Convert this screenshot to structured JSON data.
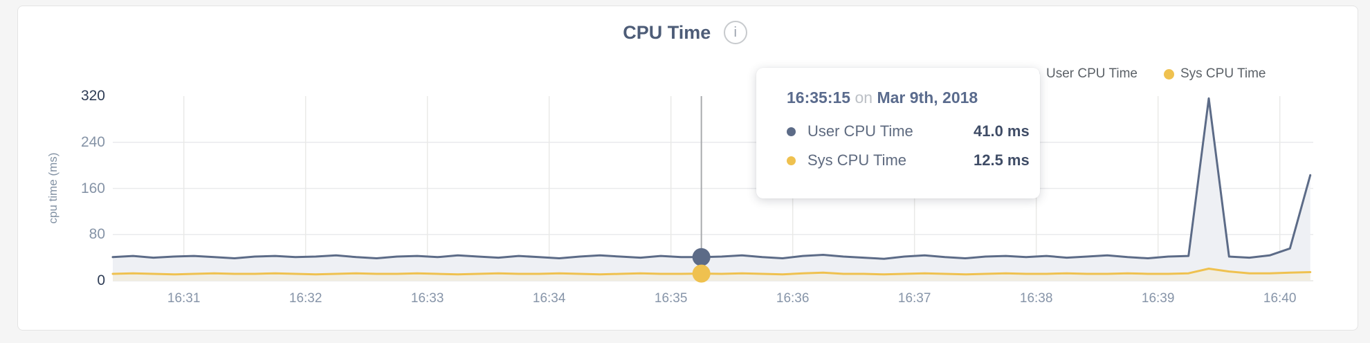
{
  "page": {
    "background": "#f5f5f5",
    "card_background": "#ffffff",
    "card_border": "#e4e4e4"
  },
  "header": {
    "title": "CPU Time",
    "info_icon_glyph": "i"
  },
  "legend": {
    "items": [
      {
        "label": "User CPU Time",
        "color": "#5c6b87"
      },
      {
        "label": "Sys CPU Time",
        "color": "#efc14f"
      }
    ]
  },
  "tooltip": {
    "time": "16:35:15",
    "preposition": "on",
    "date": "Mar 9th, 2018",
    "rows": [
      {
        "label": "User CPU Time",
        "value": "41.0 ms",
        "color": "#5c6b87"
      },
      {
        "label": "Sys CPU Time",
        "value": "12.5 ms",
        "color": "#efc14f"
      }
    ]
  },
  "chart_data": {
    "type": "area",
    "title": "CPU Time",
    "xlabel": "",
    "ylabel": "cpu time (ms)",
    "ylim": [
      0,
      320
    ],
    "y_ticks": [
      0,
      80,
      160,
      240,
      320
    ],
    "y_gridlines": [
      80,
      160,
      240
    ],
    "x_ticks": [
      "16:31",
      "16:32",
      "16:33",
      "16:34",
      "16:35",
      "16:36",
      "16:37",
      "16:38",
      "16:39",
      "16:40"
    ],
    "grid": true,
    "legend_position": "top-right",
    "x_times": [
      "16:30:25",
      "16:30:35",
      "16:30:45",
      "16:30:55",
      "16:31:05",
      "16:31:15",
      "16:31:25",
      "16:31:35",
      "16:31:45",
      "16:31:55",
      "16:32:05",
      "16:32:15",
      "16:32:25",
      "16:32:35",
      "16:32:45",
      "16:32:55",
      "16:33:05",
      "16:33:15",
      "16:33:25",
      "16:33:35",
      "16:33:45",
      "16:33:55",
      "16:34:05",
      "16:34:15",
      "16:34:25",
      "16:34:35",
      "16:34:45",
      "16:34:55",
      "16:35:05",
      "16:35:15",
      "16:35:25",
      "16:35:35",
      "16:35:45",
      "16:35:55",
      "16:36:05",
      "16:36:15",
      "16:36:25",
      "16:36:35",
      "16:36:45",
      "16:36:55",
      "16:37:05",
      "16:37:15",
      "16:37:25",
      "16:37:35",
      "16:37:45",
      "16:37:55",
      "16:38:05",
      "16:38:15",
      "16:38:25",
      "16:38:35",
      "16:38:45",
      "16:38:55",
      "16:39:05",
      "16:39:15",
      "16:39:25",
      "16:39:35",
      "16:39:45",
      "16:39:55",
      "16:40:05",
      "16:40:15"
    ],
    "series": [
      {
        "name": "User CPU Time",
        "color": "#5c6b87",
        "fill": "#eef0f4",
        "values": [
          41,
          43,
          40,
          42,
          43,
          41,
          39,
          42,
          43,
          41,
          42,
          44,
          41,
          39,
          42,
          43,
          41,
          44,
          42,
          40,
          43,
          41,
          39,
          42,
          44,
          42,
          40,
          43,
          41,
          41,
          42,
          44,
          41,
          39,
          43,
          45,
          42,
          40,
          38,
          42,
          44,
          41,
          39,
          42,
          43,
          41,
          43,
          40,
          42,
          44,
          41,
          39,
          42,
          43,
          316,
          42,
          40,
          44,
          56,
          183
        ]
      },
      {
        "name": "Sys CPU Time",
        "color": "#efc14f",
        "fill": "#f1ede1",
        "values": [
          12,
          13,
          12,
          11,
          12,
          13,
          12,
          12,
          13,
          12,
          11,
          12,
          13,
          12,
          12,
          13,
          12,
          11,
          12,
          13,
          12,
          12,
          13,
          12,
          11,
          12,
          13,
          12,
          12,
          12.5,
          12,
          13,
          12,
          11,
          13,
          14,
          12,
          12,
          11,
          12,
          13,
          12,
          11,
          12,
          13,
          12,
          12,
          13,
          12,
          12,
          13,
          12,
          12,
          13,
          21,
          16,
          13,
          13,
          14,
          15
        ]
      }
    ],
    "hover": {
      "time": "16:35:15",
      "date": "Mar 9th, 2018",
      "values": [
        41.0,
        12.5
      ]
    }
  }
}
